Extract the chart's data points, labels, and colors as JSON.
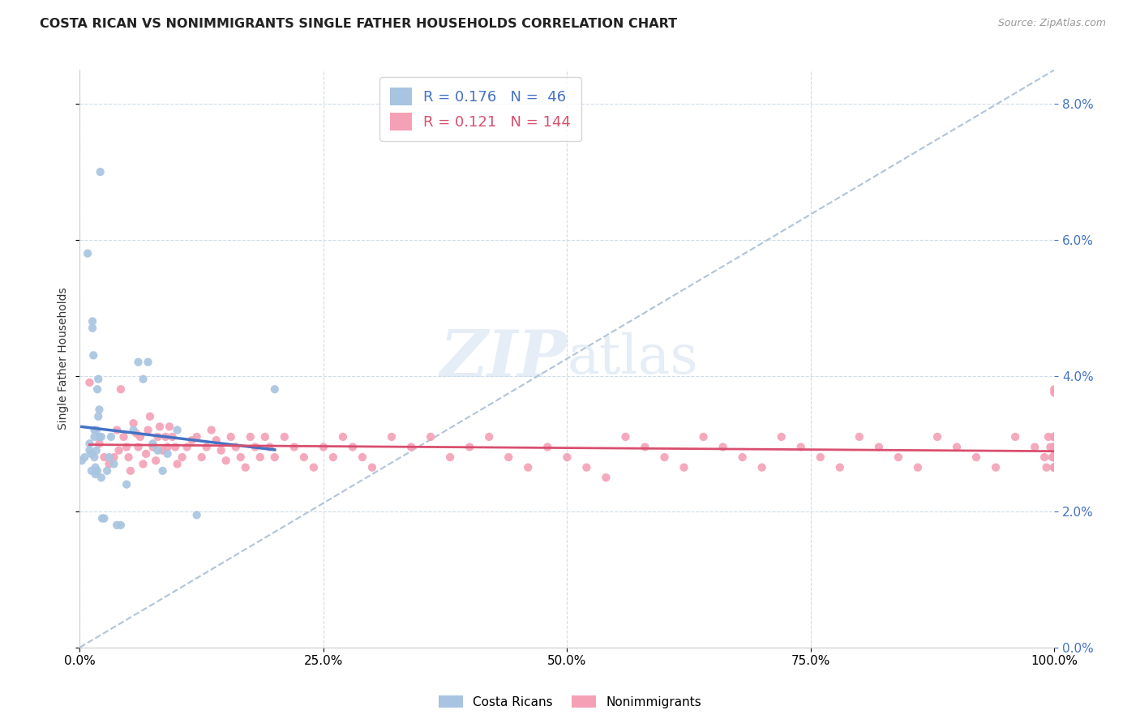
{
  "title": "COSTA RICAN VS NONIMMIGRANTS SINGLE FATHER HOUSEHOLDS CORRELATION CHART",
  "source": "Source: ZipAtlas.com",
  "ylabel": "Single Father Households",
  "x_min": 0.0,
  "x_max": 1.0,
  "y_min": 0.0,
  "y_max": 0.085,
  "costa_rican_R": 0.176,
  "costa_rican_N": 46,
  "nonimmigrant_R": 0.121,
  "nonimmigrant_N": 144,
  "cr_color": "#a8c4e0",
  "ni_color": "#f4a0b5",
  "cr_line_color": "#4472c4",
  "ni_line_color": "#d94f6e",
  "dashed_line_color": "#b0c4d8",
  "watermark_zip": "ZIP",
  "watermark_atlas": "atlas",
  "cr_scatter_x": [
    0.002,
    0.005,
    0.008,
    0.01,
    0.01,
    0.012,
    0.012,
    0.013,
    0.013,
    0.014,
    0.015,
    0.015,
    0.015,
    0.016,
    0.016,
    0.017,
    0.017,
    0.018,
    0.018,
    0.019,
    0.019,
    0.02,
    0.02,
    0.021,
    0.022,
    0.022,
    0.023,
    0.025,
    0.028,
    0.03,
    0.032,
    0.035,
    0.038,
    0.042,
    0.048,
    0.055,
    0.06,
    0.065,
    0.07,
    0.075,
    0.08,
    0.085,
    0.09,
    0.1,
    0.12,
    0.2
  ],
  "cr_scatter_y": [
    0.0275,
    0.028,
    0.058,
    0.03,
    0.029,
    0.0285,
    0.026,
    0.047,
    0.048,
    0.043,
    0.028,
    0.031,
    0.032,
    0.0255,
    0.0265,
    0.032,
    0.029,
    0.026,
    0.038,
    0.034,
    0.0395,
    0.031,
    0.035,
    0.07,
    0.031,
    0.025,
    0.019,
    0.019,
    0.026,
    0.028,
    0.031,
    0.027,
    0.018,
    0.018,
    0.024,
    0.032,
    0.042,
    0.0395,
    0.042,
    0.03,
    0.029,
    0.026,
    0.0285,
    0.032,
    0.0195,
    0.038
  ],
  "ni_scatter_x": [
    0.01,
    0.02,
    0.025,
    0.03,
    0.035,
    0.038,
    0.04,
    0.042,
    0.045,
    0.048,
    0.05,
    0.052,
    0.055,
    0.058,
    0.06,
    0.062,
    0.065,
    0.068,
    0.07,
    0.072,
    0.075,
    0.078,
    0.08,
    0.082,
    0.085,
    0.088,
    0.09,
    0.092,
    0.095,
    0.098,
    0.1,
    0.105,
    0.11,
    0.115,
    0.12,
    0.125,
    0.13,
    0.135,
    0.14,
    0.145,
    0.15,
    0.155,
    0.16,
    0.165,
    0.17,
    0.175,
    0.18,
    0.185,
    0.19,
    0.195,
    0.2,
    0.21,
    0.22,
    0.23,
    0.24,
    0.25,
    0.26,
    0.27,
    0.28,
    0.29,
    0.3,
    0.32,
    0.34,
    0.36,
    0.38,
    0.4,
    0.42,
    0.44,
    0.46,
    0.48,
    0.5,
    0.52,
    0.54,
    0.56,
    0.58,
    0.6,
    0.62,
    0.64,
    0.66,
    0.68,
    0.7,
    0.72,
    0.74,
    0.76,
    0.78,
    0.8,
    0.82,
    0.84,
    0.86,
    0.88,
    0.9,
    0.92,
    0.94,
    0.96,
    0.98,
    0.99,
    0.992,
    0.994,
    0.996,
    0.998,
    1.0,
    1.0,
    1.0,
    1.0,
    1.0,
    1.0,
    1.0,
    1.0,
    1.0,
    1.0,
    1.0,
    1.0,
    1.0,
    1.0,
    1.0,
    1.0,
    1.0,
    1.0,
    1.0,
    1.0,
    1.0,
    1.0,
    1.0,
    1.0,
    1.0,
    1.0,
    1.0,
    1.0,
    1.0,
    1.0,
    1.0,
    1.0,
    1.0,
    1.0,
    1.0,
    1.0,
    1.0,
    1.0,
    1.0,
    1.0,
    1.0
  ],
  "ni_scatter_y": [
    0.039,
    0.03,
    0.028,
    0.027,
    0.028,
    0.032,
    0.029,
    0.038,
    0.031,
    0.0295,
    0.028,
    0.026,
    0.033,
    0.0315,
    0.0295,
    0.031,
    0.027,
    0.0285,
    0.032,
    0.034,
    0.0295,
    0.0275,
    0.031,
    0.0325,
    0.029,
    0.031,
    0.0295,
    0.0325,
    0.031,
    0.0295,
    0.027,
    0.028,
    0.0295,
    0.0305,
    0.031,
    0.028,
    0.0295,
    0.032,
    0.0305,
    0.029,
    0.0275,
    0.031,
    0.0295,
    0.028,
    0.0265,
    0.031,
    0.0295,
    0.028,
    0.031,
    0.0295,
    0.028,
    0.031,
    0.0295,
    0.028,
    0.0265,
    0.0295,
    0.028,
    0.031,
    0.0295,
    0.028,
    0.0265,
    0.031,
    0.0295,
    0.031,
    0.028,
    0.0295,
    0.031,
    0.028,
    0.0265,
    0.0295,
    0.028,
    0.0265,
    0.025,
    0.031,
    0.0295,
    0.028,
    0.0265,
    0.031,
    0.0295,
    0.028,
    0.0265,
    0.031,
    0.0295,
    0.028,
    0.0265,
    0.031,
    0.0295,
    0.028,
    0.0265,
    0.031,
    0.0295,
    0.028,
    0.0265,
    0.031,
    0.0295,
    0.028,
    0.0265,
    0.031,
    0.0295,
    0.028,
    0.0265,
    0.031,
    0.0295,
    0.028,
    0.031,
    0.0295,
    0.028,
    0.0265,
    0.031,
    0.0295,
    0.028,
    0.0265,
    0.031,
    0.0295,
    0.038,
    0.029,
    0.028,
    0.0265,
    0.031,
    0.0295,
    0.028,
    0.0265,
    0.031,
    0.0295,
    0.028,
    0.0265,
    0.031,
    0.0295,
    0.028,
    0.0265,
    0.031,
    0.0295,
    0.028,
    0.0265,
    0.031,
    0.0295,
    0.028,
    0.0265,
    0.0375
  ]
}
